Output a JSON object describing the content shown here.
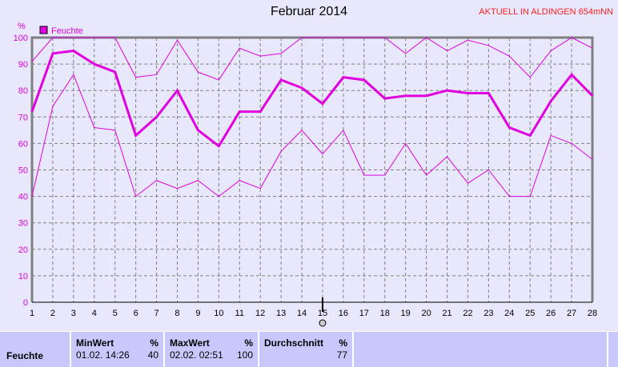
{
  "header": {
    "title": "Februar 2014",
    "live_label": "AKTUELL IN ALDINGEN 654mNN"
  },
  "chart_data": {
    "type": "line",
    "title": "Februar 2014",
    "ylabel": "%",
    "ylim": [
      0,
      100
    ],
    "yticks": [
      0,
      10,
      20,
      30,
      40,
      50,
      60,
      70,
      80,
      90,
      100
    ],
    "x": [
      1,
      2,
      3,
      4,
      5,
      6,
      7,
      8,
      9,
      10,
      11,
      12,
      13,
      14,
      15,
      16,
      17,
      18,
      19,
      20,
      21,
      22,
      23,
      24,
      25,
      26,
      27,
      28
    ],
    "grid": true,
    "legend": {
      "placement": "top-left",
      "entries": [
        "Feuchte"
      ]
    },
    "color": "#e000e0",
    "cursor_x": 15,
    "series": [
      {
        "role": "max",
        "values": [
          91,
          100,
          100,
          100,
          100,
          85,
          86,
          99,
          87,
          84,
          96,
          93,
          94,
          100,
          100,
          100,
          100,
          100,
          94,
          100,
          95,
          99,
          97,
          93,
          85,
          95,
          100,
          96
        ]
      },
      {
        "name": "Feuchte",
        "role": "avg",
        "values": [
          72,
          94,
          95,
          90,
          87,
          63,
          70,
          80,
          65,
          59,
          72,
          72,
          84,
          81,
          75,
          85,
          84,
          77,
          78,
          78,
          80,
          79,
          79,
          66,
          63,
          76,
          86,
          78
        ]
      },
      {
        "role": "min",
        "values": [
          40,
          74,
          86,
          66,
          65,
          40,
          46,
          43,
          46,
          40,
          46,
          43,
          57,
          65,
          56,
          65,
          48,
          48,
          60,
          48,
          55,
          45,
          50,
          40,
          40,
          63,
          60,
          54
        ]
      }
    ]
  },
  "table": {
    "row_label": "Feuchte",
    "min": {
      "header": "MinWert",
      "unit": "%",
      "time": "01.02.  14:26",
      "value": "40"
    },
    "max": {
      "header": "MaxWert",
      "unit": "%",
      "time": "02.02.  02:51",
      "value": "100"
    },
    "avg": {
      "header": "Durchschnitt",
      "unit": "%",
      "value": "77"
    }
  }
}
